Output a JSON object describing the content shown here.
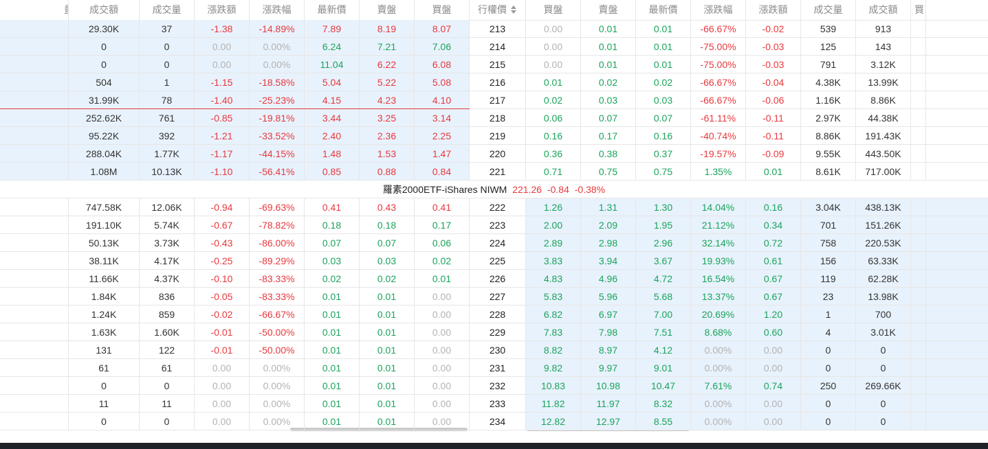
{
  "header": {
    "columns": [
      "量",
      "成交額",
      "成交量",
      "漲跌額",
      "漲跌幅",
      "最新價",
      "賣盤",
      "買盤",
      "行權價",
      "買盤",
      "賣盤",
      "最新價",
      "漲跌幅",
      "漲跌額",
      "成交量",
      "成交額",
      "買"
    ]
  },
  "colors": {
    "up": "#1aa35b",
    "down": "#e8383d",
    "flat": "#b3b3b3",
    "plain": "#333333"
  },
  "upper_rows": [
    {
      "strike": "213",
      "call": [
        "29.30K",
        "37",
        "-1.38",
        "-14.89%",
        "7.89",
        "8.19",
        "8.07"
      ],
      "call_price_tones": [
        "down",
        "down",
        "down"
      ],
      "put": [
        "0.00",
        "0.01",
        "0.01",
        "-66.67%",
        "-0.02",
        "539",
        "913"
      ]
    },
    {
      "strike": "214",
      "call": [
        "0",
        "0",
        "0.00",
        "0.00%",
        "6.24",
        "7.21",
        "7.06"
      ],
      "call_price_tones": [
        "up",
        "up",
        "up"
      ],
      "put": [
        "0.00",
        "0.01",
        "0.01",
        "-75.00%",
        "-0.03",
        "125",
        "143"
      ]
    },
    {
      "strike": "215",
      "call": [
        "0",
        "0",
        "0.00",
        "0.00%",
        "11.04",
        "6.22",
        "6.08"
      ],
      "call_price_tones": [
        "up",
        "down",
        "down"
      ],
      "put": [
        "0.00",
        "0.01",
        "0.01",
        "-75.00%",
        "-0.03",
        "791",
        "3.12K"
      ]
    },
    {
      "strike": "216",
      "call": [
        "504",
        "1",
        "-1.15",
        "-18.58%",
        "5.04",
        "5.22",
        "5.08"
      ],
      "call_price_tones": [
        "down",
        "down",
        "down"
      ],
      "put": [
        "0.01",
        "0.02",
        "0.02",
        "-66.67%",
        "-0.04",
        "4.38K",
        "13.99K"
      ]
    },
    {
      "strike": "217",
      "call": [
        "31.99K",
        "78",
        "-1.40",
        "-25.23%",
        "4.15",
        "4.23",
        "4.10"
      ],
      "call_price_tones": [
        "down",
        "down",
        "down"
      ],
      "put": [
        "0.02",
        "0.03",
        "0.03",
        "-66.67%",
        "-0.06",
        "1.16K",
        "8.86K"
      ]
    },
    {
      "strike": "218",
      "call": [
        "252.62K",
        "761",
        "-0.85",
        "-19.81%",
        "3.44",
        "3.25",
        "3.14"
      ],
      "call_price_tones": [
        "down",
        "down",
        "down"
      ],
      "put": [
        "0.06",
        "0.07",
        "0.07",
        "-61.11%",
        "-0.11",
        "2.97K",
        "44.38K"
      ]
    },
    {
      "strike": "219",
      "call": [
        "95.22K",
        "392",
        "-1.21",
        "-33.52%",
        "2.40",
        "2.36",
        "2.25"
      ],
      "call_price_tones": [
        "down",
        "down",
        "down"
      ],
      "put": [
        "0.16",
        "0.17",
        "0.16",
        "-40.74%",
        "-0.11",
        "8.86K",
        "191.43K"
      ]
    },
    {
      "strike": "220",
      "call": [
        "288.04K",
        "1.77K",
        "-1.17",
        "-44.15%",
        "1.48",
        "1.53",
        "1.47"
      ],
      "call_price_tones": [
        "down",
        "down",
        "down"
      ],
      "put": [
        "0.36",
        "0.38",
        "0.37",
        "-19.57%",
        "-0.09",
        "9.55K",
        "443.50K"
      ]
    },
    {
      "strike": "221",
      "call": [
        "1.08M",
        "10.13K",
        "-1.10",
        "-56.41%",
        "0.85",
        "0.88",
        "0.84"
      ],
      "call_price_tones": [
        "down",
        "down",
        "down"
      ],
      "put": [
        "0.71",
        "0.75",
        "0.75",
        "1.35%",
        "0.01",
        "8.61K",
        "717.00K"
      ]
    }
  ],
  "underlying": {
    "name": "羅素2000ETF-iShares NIWM",
    "price": "221.26",
    "change": "-0.84",
    "change_pct": "-0.38%",
    "tone": "down"
  },
  "lower_rows": [
    {
      "strike": "222",
      "call": [
        "747.58K",
        "12.06K",
        "-0.94",
        "-69.63%",
        "0.41",
        "0.43",
        "0.41"
      ],
      "call_price_tones": [
        "down",
        "down",
        "down"
      ],
      "put": [
        "1.26",
        "1.31",
        "1.30",
        "14.04%",
        "0.16",
        "3.04K",
        "438.13K"
      ]
    },
    {
      "strike": "223",
      "call": [
        "191.10K",
        "5.74K",
        "-0.67",
        "-78.82%",
        "0.18",
        "0.18",
        "0.17"
      ],
      "call_price_tones": [
        "up",
        "up",
        "up"
      ],
      "put": [
        "2.00",
        "2.09",
        "1.95",
        "21.12%",
        "0.34",
        "701",
        "151.26K"
      ]
    },
    {
      "strike": "224",
      "call": [
        "50.13K",
        "3.73K",
        "-0.43",
        "-86.00%",
        "0.07",
        "0.07",
        "0.06"
      ],
      "call_price_tones": [
        "up",
        "up",
        "up"
      ],
      "put": [
        "2.89",
        "2.98",
        "2.96",
        "32.14%",
        "0.72",
        "758",
        "220.53K"
      ]
    },
    {
      "strike": "225",
      "call": [
        "38.11K",
        "4.17K",
        "-0.25",
        "-89.29%",
        "0.03",
        "0.03",
        "0.02"
      ],
      "call_price_tones": [
        "up",
        "up",
        "up"
      ],
      "put": [
        "3.83",
        "3.94",
        "3.67",
        "19.93%",
        "0.61",
        "156",
        "63.33K"
      ]
    },
    {
      "strike": "226",
      "call": [
        "11.66K",
        "4.37K",
        "-0.10",
        "-83.33%",
        "0.02",
        "0.02",
        "0.01"
      ],
      "call_price_tones": [
        "up",
        "up",
        "up"
      ],
      "put": [
        "4.83",
        "4.96",
        "4.72",
        "16.54%",
        "0.67",
        "119",
        "62.28K"
      ]
    },
    {
      "strike": "227",
      "call": [
        "1.84K",
        "836",
        "-0.05",
        "-83.33%",
        "0.01",
        "0.01",
        "0.00"
      ],
      "call_price_tones": [
        "up",
        "up",
        "up"
      ],
      "put": [
        "5.83",
        "5.96",
        "5.68",
        "13.37%",
        "0.67",
        "23",
        "13.98K"
      ]
    },
    {
      "strike": "228",
      "call": [
        "1.24K",
        "859",
        "-0.02",
        "-66.67%",
        "0.01",
        "0.01",
        "0.00"
      ],
      "call_price_tones": [
        "up",
        "up",
        "up"
      ],
      "put": [
        "6.82",
        "6.97",
        "7.00",
        "20.69%",
        "1.20",
        "1",
        "700"
      ]
    },
    {
      "strike": "229",
      "call": [
        "1.63K",
        "1.60K",
        "-0.01",
        "-50.00%",
        "0.01",
        "0.01",
        "0.00"
      ],
      "call_price_tones": [
        "up",
        "up",
        "up"
      ],
      "put": [
        "7.83",
        "7.98",
        "7.51",
        "8.68%",
        "0.60",
        "4",
        "3.01K"
      ]
    },
    {
      "strike": "230",
      "call": [
        "131",
        "122",
        "-0.01",
        "-50.00%",
        "0.01",
        "0.01",
        "0.00"
      ],
      "call_price_tones": [
        "up",
        "up",
        "up"
      ],
      "put": [
        "8.82",
        "8.97",
        "4.12",
        "0.00%",
        "0.00",
        "0",
        "0"
      ]
    },
    {
      "strike": "231",
      "call": [
        "61",
        "61",
        "0.00",
        "0.00%",
        "0.01",
        "0.01",
        "0.00"
      ],
      "call_price_tones": [
        "up",
        "up",
        "up"
      ],
      "put": [
        "9.82",
        "9.97",
        "9.01",
        "0.00%",
        "0.00",
        "0",
        "0"
      ]
    },
    {
      "strike": "232",
      "call": [
        "0",
        "0",
        "0.00",
        "0.00%",
        "0.01",
        "0.01",
        "0.00"
      ],
      "call_price_tones": [
        "up",
        "up",
        "up"
      ],
      "put": [
        "10.83",
        "10.98",
        "10.47",
        "7.61%",
        "0.74",
        "250",
        "269.66K"
      ]
    },
    {
      "strike": "233",
      "call": [
        "11",
        "11",
        "0.00",
        "0.00%",
        "0.01",
        "0.01",
        "0.00"
      ],
      "call_price_tones": [
        "up",
        "up",
        "up"
      ],
      "put": [
        "11.82",
        "11.97",
        "8.32",
        "0.00%",
        "0.00",
        "0",
        "0"
      ]
    },
    {
      "strike": "234",
      "call": [
        "0",
        "0",
        "0.00",
        "0.00%",
        "0.01",
        "0.01",
        "0.00"
      ],
      "call_price_tones": [
        "up",
        "up",
        "up"
      ],
      "put": [
        "12.82",
        "12.97",
        "8.55",
        "0.00%",
        "0.00",
        "0",
        "0"
      ]
    }
  ]
}
